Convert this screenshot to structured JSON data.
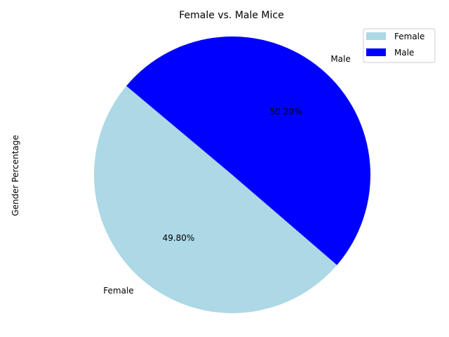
{
  "chart_data": {
    "type": "pie",
    "title": "Female vs. Male Mice",
    "ylabel": "Gender Percentage",
    "slices": [
      {
        "label": "Female",
        "value": 49.8,
        "pct_label": "49.80%",
        "color": "#add8e6"
      },
      {
        "label": "Male",
        "value": 50.2,
        "pct_label": "50.20%",
        "color": "#0000ff"
      }
    ],
    "start_angle_deg": 140,
    "legend": {
      "position": "top-right",
      "entries": [
        "Female",
        "Male"
      ]
    }
  }
}
